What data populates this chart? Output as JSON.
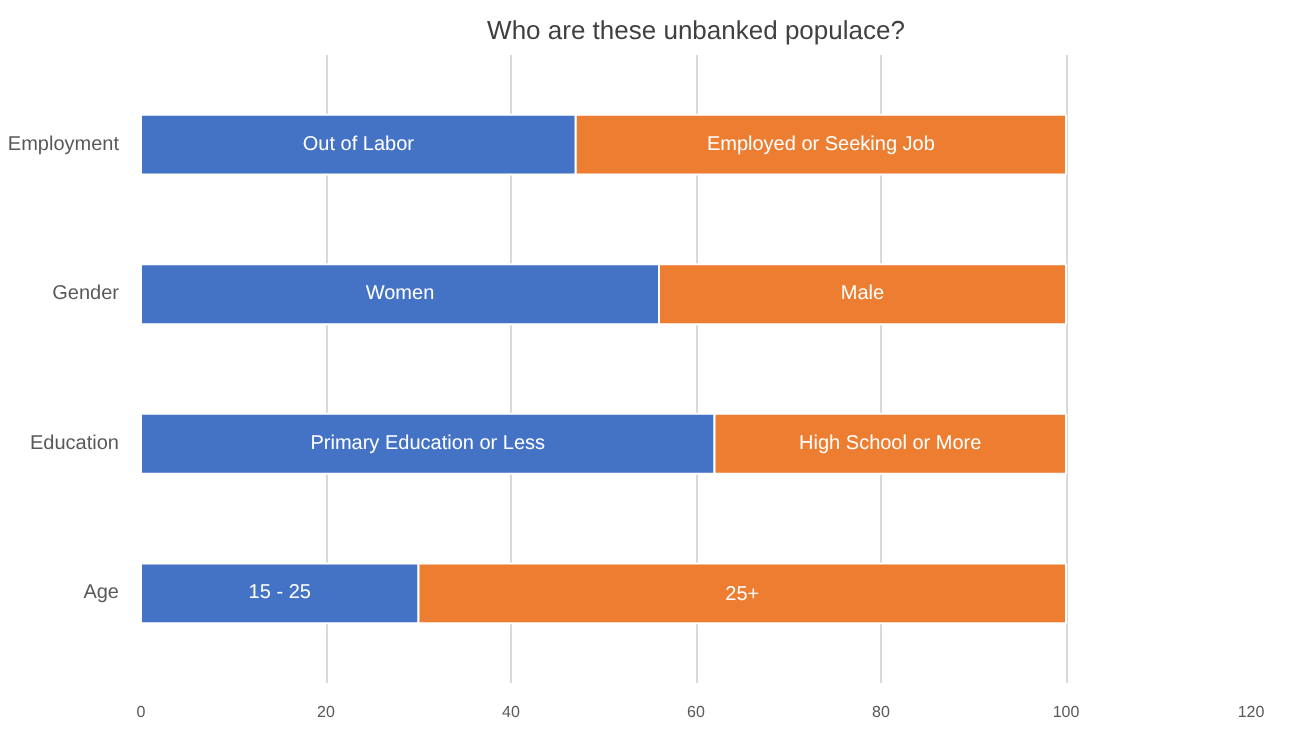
{
  "chart_data": {
    "type": "bar",
    "orientation": "horizontal",
    "stacked": true,
    "title": "Who are these unbanked populace?",
    "categories": [
      "Employment",
      "Gender",
      "Education",
      "Age"
    ],
    "series": [
      {
        "color": "#4472c4",
        "values": [
          47,
          56,
          62,
          30
        ]
      },
      {
        "color": "#ed7d31",
        "values": [
          53,
          44,
          38,
          70
        ]
      }
    ],
    "annotations": [
      "Out of Labor",
      "Employed or Seeking Job",
      "Women",
      "Male",
      "Primary Education or Less",
      "High School or More",
      "15 - 25",
      "25+"
    ],
    "xlim": [
      0,
      120
    ],
    "xticks": [
      0,
      20,
      40,
      60,
      80,
      100,
      120
    ],
    "grid": "x"
  }
}
